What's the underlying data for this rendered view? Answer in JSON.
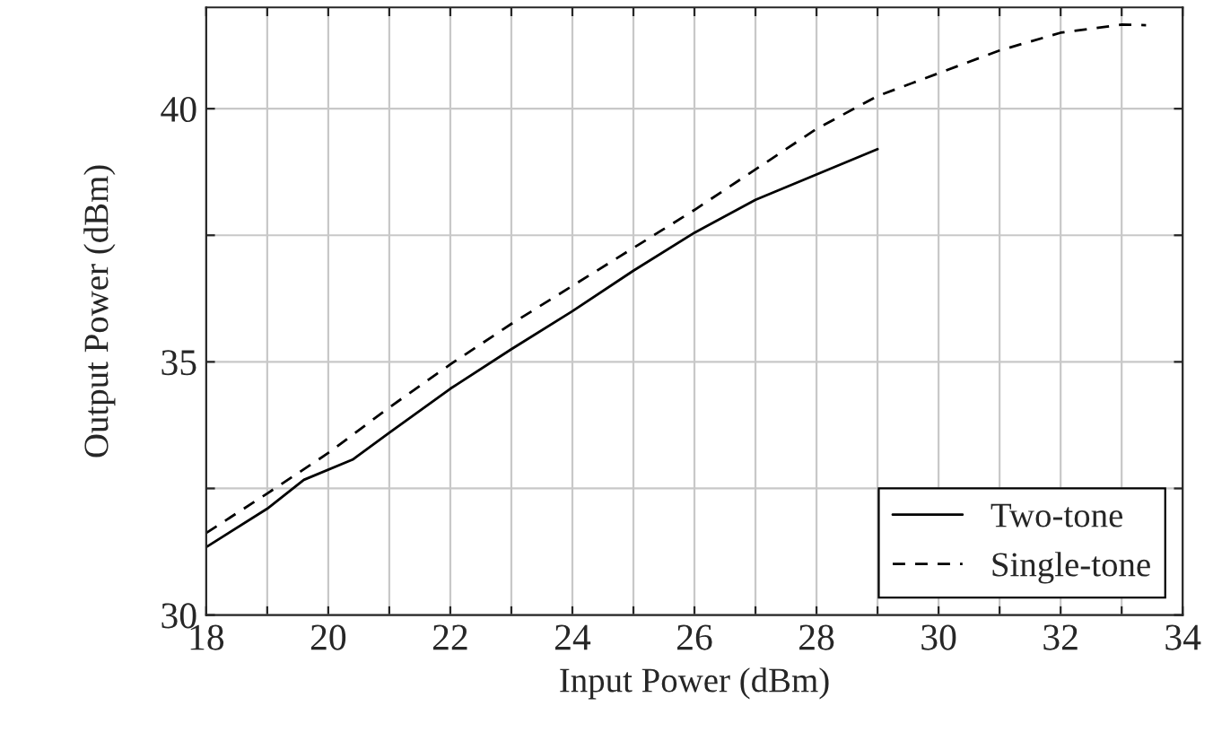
{
  "chart_data": {
    "type": "line",
    "xlabel": "Input Power (dBm)",
    "ylabel": "Output Power (dBm)",
    "xlim": [
      18,
      34
    ],
    "ylim": [
      30,
      42
    ],
    "xticks": [
      18,
      {
        "value": 19,
        "label": null
      },
      20,
      {
        "value": 21,
        "label": null
      },
      22,
      {
        "value": 23,
        "label": null
      },
      24,
      {
        "value": 25,
        "label": null
      },
      26,
      {
        "value": 27,
        "label": null
      },
      28,
      {
        "value": 29,
        "label": null
      },
      30,
      {
        "value": 31,
        "label": null
      },
      32,
      {
        "value": 33,
        "label": null
      },
      34
    ],
    "yticks": [
      30,
      {
        "value": 32.5,
        "label": null
      },
      35,
      {
        "value": 37.5,
        "label": null
      },
      40
    ],
    "grid": true,
    "legend": "bottom right",
    "series": [
      {
        "name": "Two-tone",
        "color": "#000000",
        "line_style": "solid",
        "x": [
          18,
          19,
          19.6,
          20.4,
          21,
          22,
          23,
          24,
          25,
          26,
          27,
          28,
          29
        ],
        "values": [
          31.34,
          32.1,
          32.67,
          33.07,
          33.6,
          34.47,
          35.25,
          36.0,
          36.8,
          37.55,
          38.2,
          38.7,
          39.2
        ]
      },
      {
        "name": "Single-tone",
        "color": "#000000",
        "line_style": "dashed",
        "x": [
          18,
          19,
          20,
          21,
          22,
          23,
          24,
          25,
          26,
          27,
          28,
          29,
          30,
          31,
          32,
          33,
          33.4
        ],
        "values": [
          31.62,
          32.4,
          33.2,
          34.1,
          34.95,
          35.75,
          36.5,
          37.25,
          38.0,
          38.8,
          39.6,
          40.25,
          40.7,
          41.15,
          41.5,
          41.66,
          41.65
        ]
      }
    ]
  }
}
